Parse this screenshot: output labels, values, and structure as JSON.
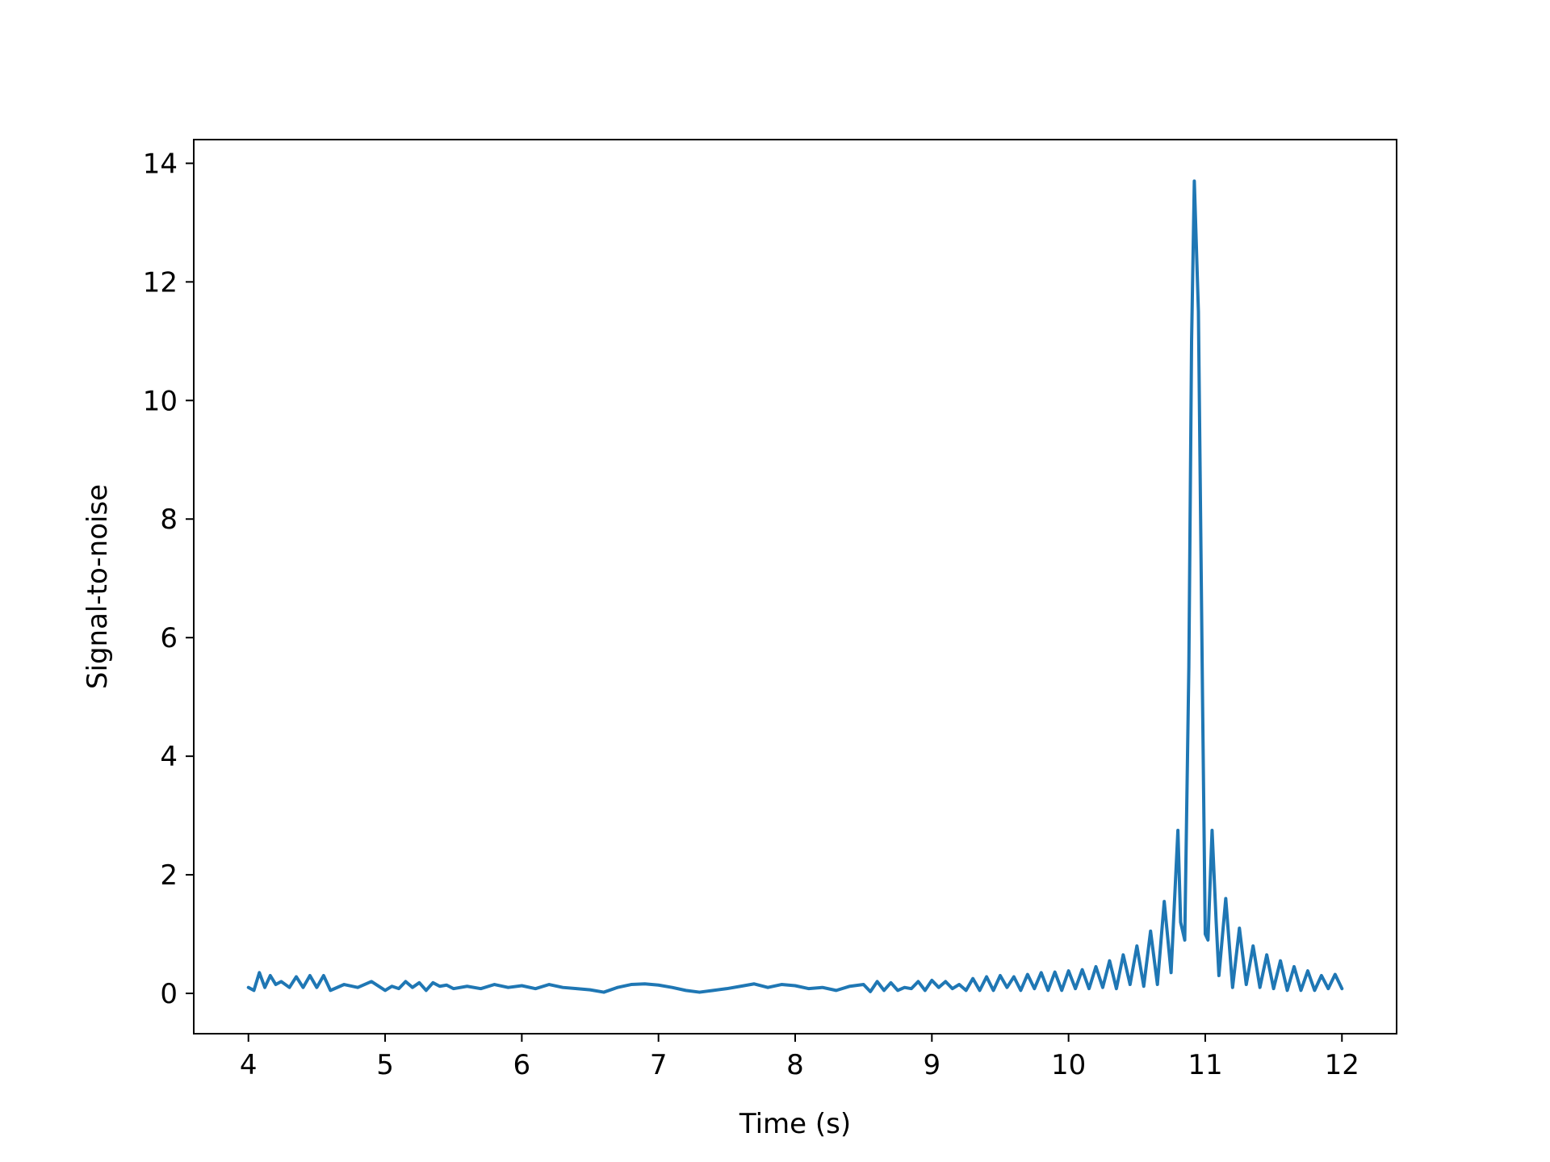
{
  "chart_data": {
    "type": "line",
    "title": "",
    "xlabel": "Time (s)",
    "ylabel": "Signal-to-noise",
    "xlim": [
      3.6,
      12.4
    ],
    "ylim": [
      -0.68,
      14.4
    ],
    "xticks": [
      4,
      5,
      6,
      7,
      8,
      9,
      10,
      11,
      12
    ],
    "yticks": [
      0,
      2,
      4,
      6,
      8,
      10,
      12,
      14
    ],
    "grid": false,
    "legend": "none",
    "series": [
      {
        "color": "#1f77b4",
        "x": [
          4.0,
          4.04,
          4.08,
          4.12,
          4.16,
          4.2,
          4.24,
          4.3,
          4.35,
          4.4,
          4.45,
          4.5,
          4.55,
          4.6,
          4.7,
          4.8,
          4.9,
          5.0,
          5.05,
          5.1,
          5.15,
          5.2,
          5.25,
          5.3,
          5.35,
          5.4,
          5.45,
          5.5,
          5.6,
          5.7,
          5.8,
          5.9,
          6.0,
          6.1,
          6.2,
          6.3,
          6.4,
          6.5,
          6.6,
          6.7,
          6.8,
          6.9,
          7.0,
          7.1,
          7.2,
          7.3,
          7.4,
          7.5,
          7.6,
          7.7,
          7.8,
          7.9,
          8.0,
          8.1,
          8.2,
          8.3,
          8.4,
          8.5,
          8.55,
          8.6,
          8.65,
          8.7,
          8.75,
          8.8,
          8.85,
          8.9,
          8.95,
          9.0,
          9.05,
          9.1,
          9.15,
          9.2,
          9.25,
          9.3,
          9.35,
          9.4,
          9.45,
          9.5,
          9.55,
          9.6,
          9.65,
          9.7,
          9.75,
          9.8,
          9.85,
          9.9,
          9.95,
          10.0,
          10.05,
          10.1,
          10.15,
          10.2,
          10.25,
          10.3,
          10.35,
          10.4,
          10.45,
          10.5,
          10.55,
          10.6,
          10.65,
          10.7,
          10.75,
          10.8,
          10.82,
          10.85,
          10.88,
          10.9,
          10.92,
          10.95,
          10.98,
          11.0,
          11.02,
          11.05,
          11.08,
          11.1,
          11.15,
          11.2,
          11.25,
          11.3,
          11.35,
          11.4,
          11.45,
          11.5,
          11.55,
          11.6,
          11.65,
          11.7,
          11.75,
          11.8,
          11.85,
          11.9,
          11.95,
          12.0
        ],
        "y": [
          0.1,
          0.05,
          0.35,
          0.1,
          0.3,
          0.15,
          0.2,
          0.1,
          0.28,
          0.1,
          0.3,
          0.1,
          0.3,
          0.05,
          0.15,
          0.1,
          0.2,
          0.05,
          0.12,
          0.08,
          0.2,
          0.1,
          0.18,
          0.05,
          0.18,
          0.12,
          0.14,
          0.08,
          0.12,
          0.08,
          0.15,
          0.1,
          0.13,
          0.08,
          0.15,
          0.1,
          0.08,
          0.06,
          0.02,
          0.1,
          0.15,
          0.16,
          0.14,
          0.1,
          0.05,
          0.02,
          0.05,
          0.08,
          0.12,
          0.16,
          0.1,
          0.15,
          0.13,
          0.08,
          0.1,
          0.05,
          0.12,
          0.15,
          0.03,
          0.2,
          0.05,
          0.18,
          0.05,
          0.1,
          0.08,
          0.2,
          0.05,
          0.22,
          0.1,
          0.2,
          0.08,
          0.15,
          0.05,
          0.25,
          0.05,
          0.28,
          0.05,
          0.3,
          0.1,
          0.28,
          0.05,
          0.32,
          0.08,
          0.35,
          0.05,
          0.36,
          0.05,
          0.38,
          0.08,
          0.4,
          0.08,
          0.45,
          0.1,
          0.55,
          0.08,
          0.65,
          0.15,
          0.8,
          0.12,
          1.05,
          0.15,
          1.55,
          0.35,
          2.75,
          1.2,
          0.9,
          5.5,
          11.0,
          13.7,
          11.5,
          5.0,
          1.0,
          0.9,
          2.75,
          1.2,
          0.3,
          1.6,
          0.1,
          1.1,
          0.15,
          0.8,
          0.1,
          0.65,
          0.08,
          0.55,
          0.05,
          0.45,
          0.05,
          0.38,
          0.05,
          0.3,
          0.08,
          0.32,
          0.08
        ]
      }
    ]
  }
}
